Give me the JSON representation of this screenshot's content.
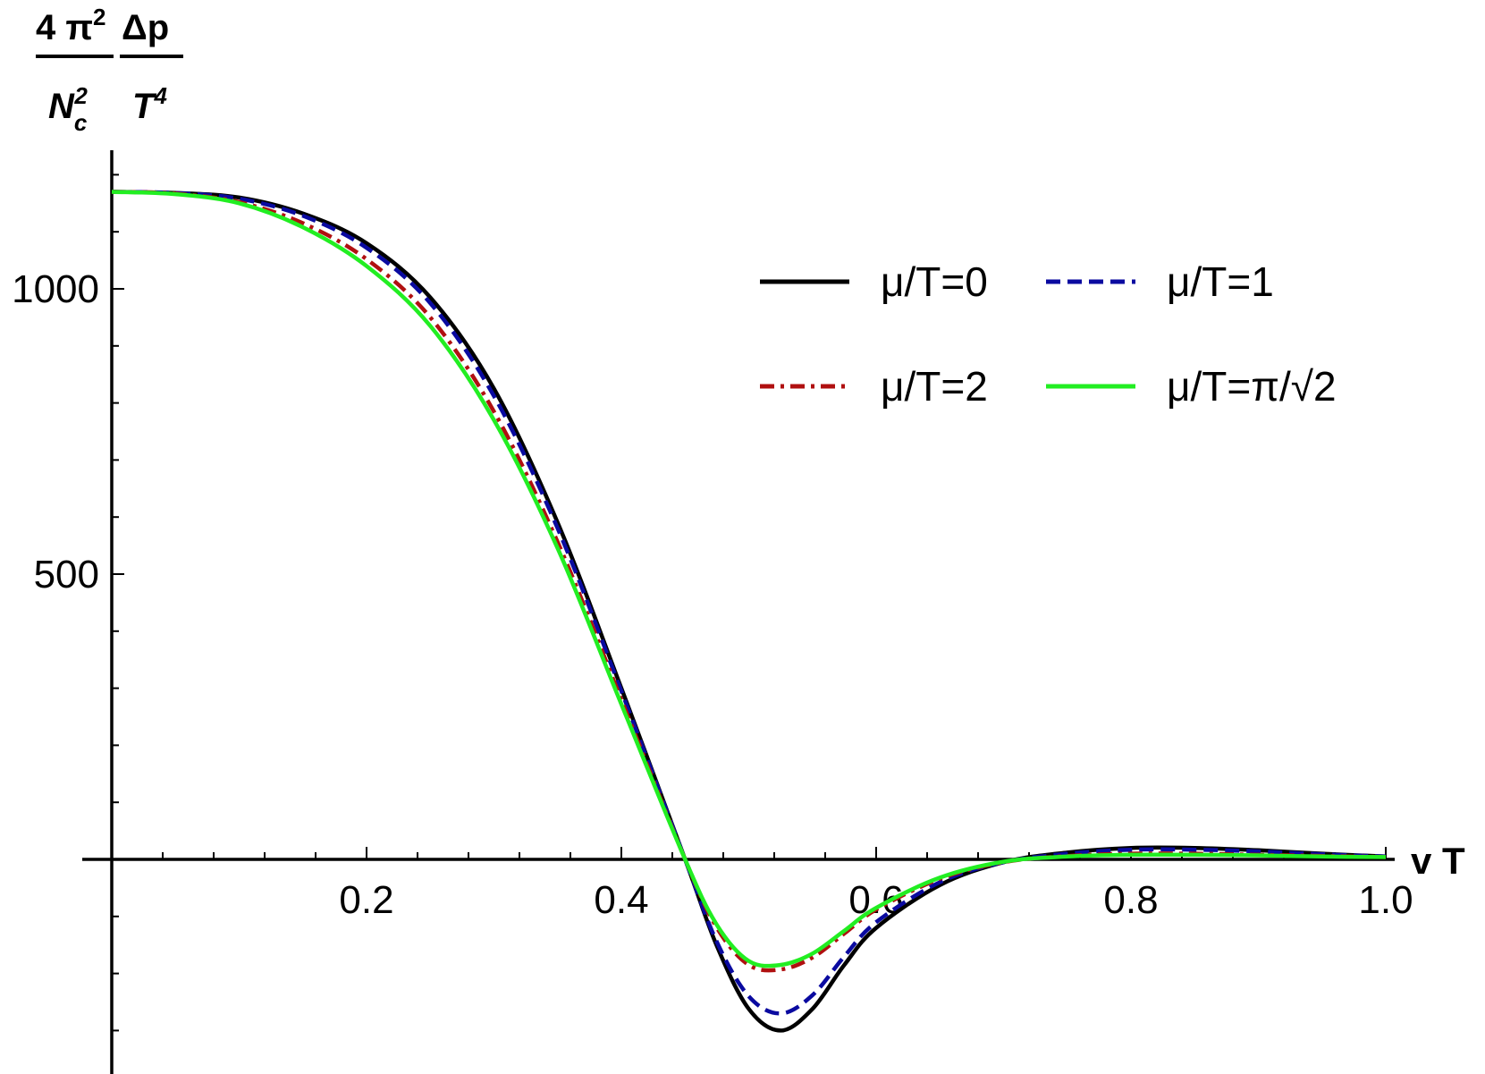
{
  "chart_data": {
    "type": "line",
    "title": "",
    "xlabel": "v T",
    "ylabel": {
      "num_a": "4 π",
      "num_a_sup": "2",
      "den_a": "N",
      "den_a_sub": "c",
      "den_a_sup": "2",
      "num_b": "Δp",
      "den_b": "T",
      "den_b_sup": "4"
    },
    "xlim": [
      0,
      1.0
    ],
    "ylim": [
      -380,
      1250
    ],
    "xticks": [
      0.2,
      0.4,
      0.6,
      0.8,
      1.0
    ],
    "xtick_labels": [
      "0.2",
      "0.4",
      "0.6",
      "0.8",
      "1.0"
    ],
    "yticks": [
      500,
      1000
    ],
    "ytick_labels": [
      "500",
      "1000"
    ],
    "grid": false,
    "legend_position": "top-right",
    "series": [
      {
        "name": "μ/T=0",
        "color": "#000000",
        "style": "solid",
        "x": [
          0.0,
          0.05,
          0.1,
          0.15,
          0.2,
          0.25,
          0.3,
          0.35,
          0.4,
          0.45,
          0.475,
          0.5,
          0.525,
          0.55,
          0.575,
          0.6,
          0.65,
          0.7,
          0.75,
          0.8,
          0.85,
          0.9,
          0.95,
          1.0
        ],
        "y": [
          1170,
          1168,
          1160,
          1132,
          1080,
          985,
          825,
          590,
          300,
          0,
          -152,
          -262,
          -300,
          -262,
          -185,
          -120,
          -45,
          -5,
          12,
          20,
          20,
          16,
          10,
          5
        ]
      },
      {
        "name": "μ/T=1",
        "color": "#0a0aa0",
        "style": "dashed",
        "x": [
          0.0,
          0.05,
          0.1,
          0.15,
          0.2,
          0.25,
          0.3,
          0.35,
          0.4,
          0.45,
          0.475,
          0.5,
          0.525,
          0.55,
          0.575,
          0.6,
          0.65,
          0.7,
          0.75,
          0.8,
          0.85,
          0.9,
          0.95,
          1.0
        ],
        "y": [
          1170,
          1168,
          1158,
          1128,
          1072,
          975,
          812,
          580,
          295,
          0,
          -145,
          -240,
          -270,
          -238,
          -170,
          -110,
          -40,
          -5,
          10,
          17,
          17,
          14,
          9,
          5
        ]
      },
      {
        "name": "μ/T=2",
        "color": "#b01010",
        "style": "dashdot",
        "x": [
          0.0,
          0.05,
          0.1,
          0.15,
          0.2,
          0.25,
          0.3,
          0.35,
          0.4,
          0.45,
          0.475,
          0.5,
          0.525,
          0.55,
          0.575,
          0.6,
          0.65,
          0.7,
          0.75,
          0.8,
          0.85,
          0.9,
          0.95,
          1.0
        ],
        "y": [
          1170,
          1167,
          1152,
          1115,
          1052,
          950,
          785,
          556,
          280,
          0,
          -120,
          -185,
          -193,
          -172,
          -130,
          -88,
          -34,
          -5,
          6,
          10,
          10,
          8,
          6,
          4
        ]
      },
      {
        "name": "μ/T=π/√2",
        "color": "#22ee22",
        "style": "solid",
        "x": [
          0.0,
          0.05,
          0.1,
          0.15,
          0.2,
          0.25,
          0.3,
          0.35,
          0.4,
          0.45,
          0.475,
          0.5,
          0.525,
          0.55,
          0.575,
          0.6,
          0.65,
          0.7,
          0.75,
          0.8,
          0.85,
          0.9,
          0.95,
          1.0
        ],
        "y": [
          1170,
          1166,
          1150,
          1108,
          1040,
          935,
          770,
          545,
          272,
          0,
          -115,
          -178,
          -185,
          -165,
          -125,
          -85,
          -32,
          -4,
          5,
          8,
          8,
          7,
          5,
          4
        ]
      }
    ]
  }
}
